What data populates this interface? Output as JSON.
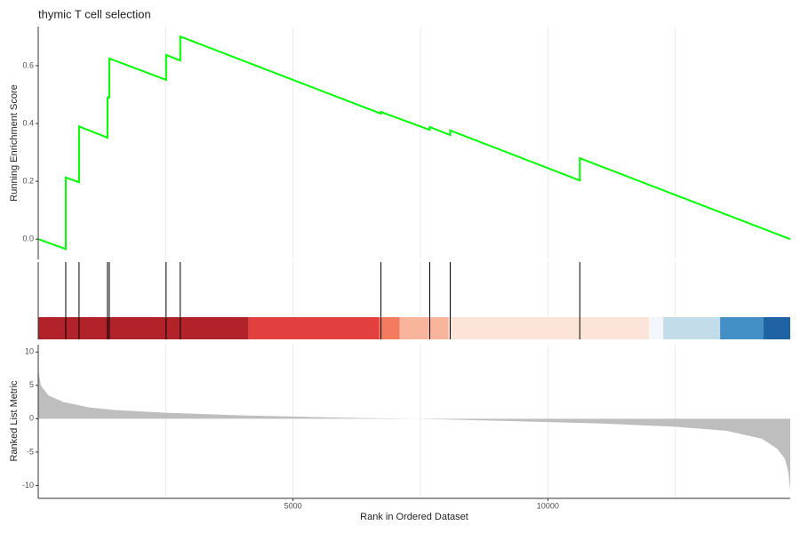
{
  "chart_data": [
    {
      "type": "line",
      "title": "thymic T cell selection",
      "ylabel": "Running Enrichment Score",
      "color": "#00ff00",
      "xlim": [
        0,
        14756
      ],
      "ylim": [
        -0.07,
        0.735
      ],
      "yticks": [
        {
          "value": 0,
          "label": "0.0"
        },
        0.2,
        0.4,
        0.6
      ],
      "x": [
        0,
        540,
        540,
        801,
        801,
        1359,
        1359,
        1394,
        1394,
        2509,
        2509,
        2787,
        2787,
        6725,
        6725,
        7683,
        7683,
        8084,
        8084,
        10627,
        10627,
        14756
      ],
      "values": [
        0,
        -0.034,
        0.213,
        0.197,
        0.39,
        0.351,
        0.49,
        0.49,
        0.625,
        0.551,
        0.637,
        0.618,
        0.701,
        0.434,
        0.44,
        0.378,
        0.388,
        0.36,
        0.376,
        0.203,
        0.28,
        0
      ]
    },
    {
      "type": "barcode",
      "color": "#000000",
      "xlim": [
        0,
        14756
      ],
      "hits": [
        540,
        801,
        1359,
        1394,
        2509,
        2787,
        6725,
        7683,
        8084,
        10627
      ],
      "bands": [
        {
          "start": 0,
          "end": 4129,
          "color": "#b2222a"
        },
        {
          "start": 4129,
          "end": 6690,
          "color": "#e2403f"
        },
        {
          "start": 6690,
          "end": 7091,
          "color": "#f47a60"
        },
        {
          "start": 7091,
          "end": 8049,
          "color": "#f9b59b"
        },
        {
          "start": 8049,
          "end": 11986,
          "color": "#fde4d8"
        },
        {
          "start": 11986,
          "end": 12265,
          "color": "#f3f6fa"
        },
        {
          "start": 12265,
          "end": 13380,
          "color": "#c3dcea"
        },
        {
          "start": 13380,
          "end": 14233,
          "color": "#4490c6"
        },
        {
          "start": 14233,
          "end": 14756,
          "color": "#1f63a5"
        }
      ]
    },
    {
      "type": "area",
      "ylabel": "Ranked List Metric",
      "xlabel": "Rank in Ordered Dataset",
      "color": "#bebebe",
      "xlim": [
        0,
        14756
      ],
      "ylim": [
        -11.8,
        11.1
      ],
      "yticks": [
        -10,
        -5,
        0,
        5,
        10
      ],
      "xticks": [
        5000,
        10000
      ],
      "xgrid": [
        2500,
        5000,
        7500,
        10000,
        12500
      ],
      "x": [
        0,
        50,
        200,
        500,
        1000,
        1500,
        2500,
        4000,
        6000,
        7400,
        9000,
        11000,
        12500,
        13500,
        14200,
        14500,
        14650,
        14720,
        14756
      ],
      "values": [
        7.5,
        5,
        3.5,
        2.5,
        1.7,
        1.3,
        0.9,
        0.5,
        0.15,
        0,
        -0.3,
        -0.7,
        -1.2,
        -1.8,
        -3,
        -4.5,
        -6,
        -8,
        -10.8
      ]
    }
  ]
}
